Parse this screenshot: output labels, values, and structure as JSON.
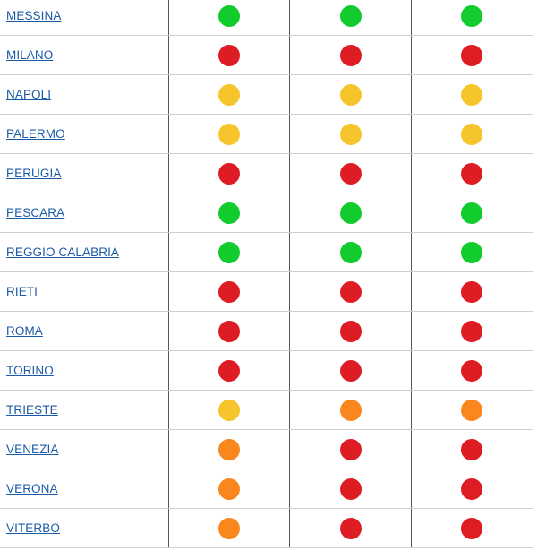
{
  "colors": {
    "green": "#12cc2e",
    "red": "#de1c24",
    "yellow": "#f6c52b",
    "orange": "#fa861e",
    "link": "#1a5aa6"
  },
  "rows": [
    {
      "city": "MESSINA",
      "status": [
        "green",
        "green",
        "green"
      ]
    },
    {
      "city": "MILANO",
      "status": [
        "red",
        "red",
        "red"
      ]
    },
    {
      "city": "NAPOLI",
      "status": [
        "yellow",
        "yellow",
        "yellow"
      ]
    },
    {
      "city": "PALERMO",
      "status": [
        "yellow",
        "yellow",
        "yellow"
      ]
    },
    {
      "city": "PERUGIA",
      "status": [
        "red",
        "red",
        "red"
      ]
    },
    {
      "city": "PESCARA",
      "status": [
        "green",
        "green",
        "green"
      ]
    },
    {
      "city": "REGGIO CALABRIA",
      "status": [
        "green",
        "green",
        "green"
      ]
    },
    {
      "city": "RIETI",
      "status": [
        "red",
        "red",
        "red"
      ]
    },
    {
      "city": "ROMA",
      "status": [
        "red",
        "red",
        "red"
      ]
    },
    {
      "city": "TORINO",
      "status": [
        "red",
        "red",
        "red"
      ]
    },
    {
      "city": "TRIESTE",
      "status": [
        "yellow",
        "orange",
        "orange"
      ]
    },
    {
      "city": "VENEZIA",
      "status": [
        "orange",
        "red",
        "red"
      ]
    },
    {
      "city": "VERONA",
      "status": [
        "orange",
        "red",
        "red"
      ]
    },
    {
      "city": "VITERBO",
      "status": [
        "orange",
        "red",
        "red"
      ]
    }
  ]
}
